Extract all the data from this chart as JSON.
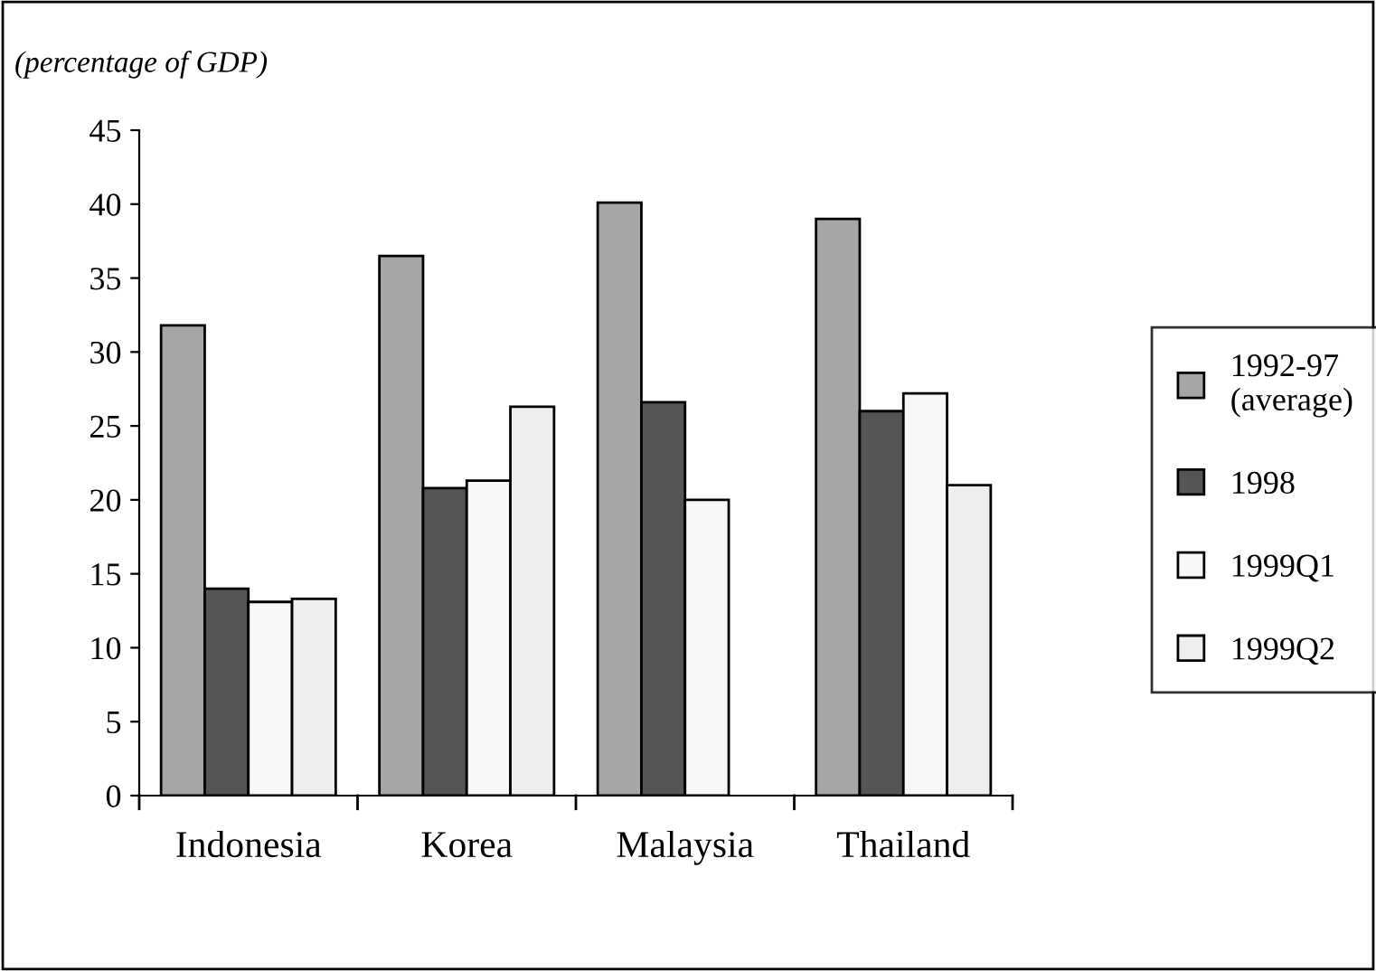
{
  "chart_data": {
    "type": "bar",
    "ylabel": "(percentage of GDP)",
    "categories": [
      "Indonesia",
      "Korea",
      "Malaysia",
      "Thailand"
    ],
    "series": [
      {
        "name": "1992-97\n(average)",
        "color": "#a6a6a6",
        "values": [
          31.8,
          36.5,
          40.1,
          39.0
        ]
      },
      {
        "name": "1998",
        "color": "#555555",
        "values": [
          14.0,
          20.8,
          26.6,
          26.0
        ]
      },
      {
        "name": "1999Q1",
        "color": "#f8f8f8",
        "values": [
          13.1,
          21.3,
          20.0,
          27.2
        ]
      },
      {
        "name": "1999Q2",
        "color": "#eeeeee",
        "values": [
          13.3,
          26.3,
          null,
          21.0
        ]
      }
    ],
    "ylim": [
      0,
      45
    ],
    "yticks": [
      0,
      5,
      10,
      15,
      20,
      25,
      30,
      35,
      40,
      45
    ],
    "grid": false,
    "legend": "right"
  }
}
